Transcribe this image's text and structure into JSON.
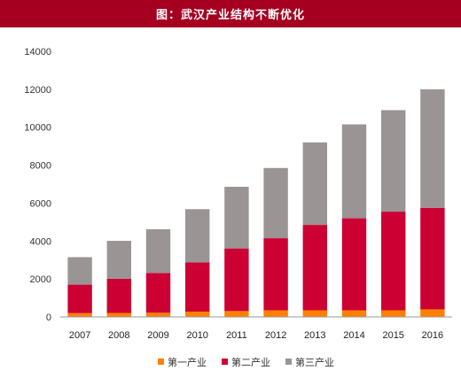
{
  "chart_data": {
    "type": "bar",
    "stacked": true,
    "title": "图：武汉产业结构不断优化",
    "xlabel": "",
    "ylabel": "",
    "ylim": [
      0,
      14000
    ],
    "yticks": [
      0,
      2000,
      4000,
      6000,
      8000,
      10000,
      12000,
      14000
    ],
    "categories": [
      "2007",
      "2008",
      "2009",
      "2010",
      "2011",
      "2012",
      "2013",
      "2014",
      "2015",
      "2016"
    ],
    "series": [
      {
        "name": "第一产业",
        "color": "#ff7f00",
        "values": [
          200,
          210,
          220,
          280,
          310,
          350,
          350,
          350,
          350,
          400
        ]
      },
      {
        "name": "第二产业",
        "color": "#cc0033",
        "values": [
          1500,
          1800,
          2100,
          2600,
          3300,
          3800,
          4500,
          4850,
          5200,
          5350
        ]
      },
      {
        "name": "第三产业",
        "color": "#9a9494",
        "values": [
          1450,
          2000,
          2300,
          2800,
          3250,
          3700,
          4350,
          4950,
          5350,
          6250
        ]
      }
    ],
    "grid": false,
    "legend_position": "bottom"
  }
}
